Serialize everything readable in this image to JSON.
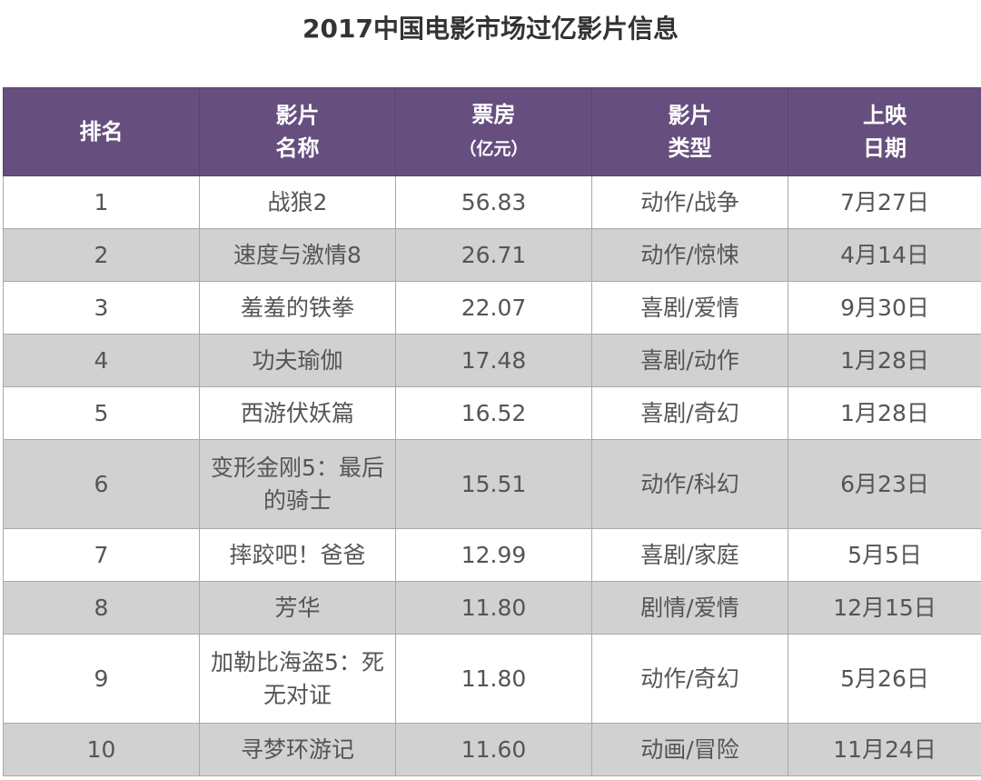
{
  "title": "2017中国电影市场过亿影片信息",
  "headers": [
    {
      "line1": "排名",
      "line2": ""
    },
    {
      "line1": "影片",
      "line2": "名称"
    },
    {
      "line1": "票房",
      "line2": "（亿元）"
    },
    {
      "line1": "影片",
      "line2": "类型"
    },
    {
      "line1": "上映",
      "line2": "日期"
    }
  ],
  "rows": [
    {
      "rank": "1",
      "name": "战狼2",
      "box": "56.83",
      "genre": "动作/战争",
      "date": "7月27日"
    },
    {
      "rank": "2",
      "name": "速度与激情8",
      "box": "26.71",
      "genre": "动作/惊悚",
      "date": "4月14日"
    },
    {
      "rank": "3",
      "name": "羞羞的铁拳",
      "box": "22.07",
      "genre": "喜剧/爱情",
      "date": "9月30日"
    },
    {
      "rank": "4",
      "name": "功夫瑜伽",
      "box": "17.48",
      "genre": "喜剧/动作",
      "date": "1月28日"
    },
    {
      "rank": "5",
      "name": "西游伏妖篇",
      "box": "16.52",
      "genre": "喜剧/奇幻",
      "date": "1月28日"
    },
    {
      "rank": "6",
      "name": "变形金刚5：最后的骑士",
      "box": "15.51",
      "genre": "动作/科幻",
      "date": "6月23日"
    },
    {
      "rank": "7",
      "name": "摔跤吧！爸爸",
      "box": "12.99",
      "genre": "喜剧/家庭",
      "date": "5月5日"
    },
    {
      "rank": "8",
      "name": "芳华",
      "box": "11.80",
      "genre": "剧情/爱情",
      "date": "12月15日"
    },
    {
      "rank": "9",
      "name": "加勒比海盗5：死无对证",
      "box": "11.80",
      "genre": "动作/奇幻",
      "date": "5月26日"
    },
    {
      "rank": "10",
      "name": "寻梦环游记",
      "box": "11.60",
      "genre": "动画/冒险",
      "date": "11月24日"
    }
  ]
}
